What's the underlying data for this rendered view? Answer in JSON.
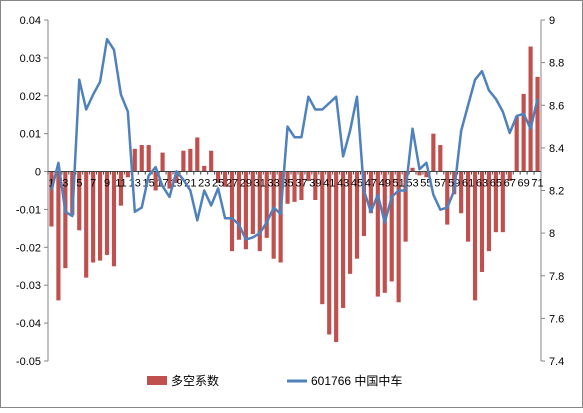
{
  "chart_data": {
    "type": "bar+line",
    "title": "",
    "categories": [
      "1",
      "2",
      "3",
      "4",
      "5",
      "6",
      "7",
      "8",
      "9",
      "10",
      "11",
      "12",
      "13",
      "14",
      "15",
      "16",
      "17",
      "18",
      "19",
      "20",
      "21",
      "22",
      "23",
      "24",
      "25",
      "26",
      "27",
      "28",
      "29",
      "30",
      "31",
      "32",
      "33",
      "34",
      "35",
      "36",
      "37",
      "38",
      "39",
      "40",
      "41",
      "42",
      "43",
      "44",
      "45",
      "46",
      "47",
      "48",
      "49",
      "50",
      "51",
      "52",
      "53",
      "54",
      "55",
      "56",
      "57",
      "58",
      "59",
      "60",
      "61",
      "62",
      "63",
      "64",
      "65",
      "66",
      "67",
      "68",
      "69",
      "70",
      "71"
    ],
    "x_tick_labels": [
      "1",
      "3",
      "5",
      "7",
      "9",
      "11",
      "13",
      "15",
      "17",
      "19",
      "21",
      "23",
      "25",
      "27",
      "29",
      "31",
      "33",
      "35",
      "37",
      "39",
      "41",
      "43",
      "45",
      "47",
      "49",
      "51",
      "53",
      "55",
      "57",
      "59",
      "61",
      "63",
      "65",
      "67",
      "69",
      "71"
    ],
    "series": [
      {
        "name": "多空系数",
        "type": "bar",
        "axis": "left",
        "color": "#C0504D",
        "values": [
          -0.0145,
          -0.034,
          -0.0255,
          -0.0115,
          -0.0155,
          -0.028,
          -0.024,
          -0.0235,
          -0.022,
          -0.025,
          -0.009,
          -0.0015,
          0.006,
          0.007,
          0.007,
          -0.005,
          0.005,
          -0.0045,
          -0.003,
          0.0055,
          0.006,
          0.009,
          0.0015,
          0.0055,
          -0.003,
          -0.004,
          -0.021,
          -0.018,
          -0.0205,
          -0.0165,
          -0.021,
          -0.0175,
          -0.023,
          -0.024,
          -0.0085,
          -0.008,
          -0.0075,
          -0.0025,
          -0.0075,
          -0.035,
          -0.043,
          -0.045,
          -0.036,
          -0.027,
          -0.023,
          -0.017,
          -0.011,
          -0.033,
          -0.032,
          -0.029,
          -0.0345,
          -0.0185,
          0.001,
          -0.001,
          -0.0015,
          0.01,
          0.007,
          -0.014,
          -0.006,
          -0.011,
          -0.0185,
          -0.034,
          -0.0265,
          -0.021,
          -0.016,
          -0.016,
          -0.0025,
          0.0145,
          0.0205,
          0.033,
          0.025
        ]
      },
      {
        "name": "601766 中国中车",
        "type": "line",
        "axis": "right",
        "color": "#4F81BD",
        "values": [
          8.2,
          8.33,
          8.1,
          8.08,
          8.72,
          8.58,
          8.65,
          8.71,
          8.91,
          8.86,
          8.65,
          8.57,
          8.1,
          8.12,
          8.27,
          8.31,
          8.22,
          8.17,
          8.29,
          8.25,
          8.2,
          8.06,
          8.2,
          8.13,
          8.21,
          8.07,
          8.07,
          8.04,
          7.97,
          7.98,
          8.0,
          8.05,
          8.12,
          8.09,
          8.5,
          8.45,
          8.45,
          8.64,
          8.58,
          8.58,
          8.61,
          8.64,
          8.36,
          8.48,
          8.64,
          8.2,
          8.1,
          8.18,
          8.05,
          8.17,
          8.2,
          8.2,
          8.49,
          8.3,
          8.33,
          8.18,
          8.11,
          8.12,
          8.2,
          8.48,
          8.6,
          8.72,
          8.76,
          8.67,
          8.63,
          8.57,
          8.47,
          8.55,
          8.56,
          8.49,
          8.63
        ]
      }
    ],
    "left_axis": {
      "min": -0.05,
      "max": 0.04,
      "step": 0.01,
      "tick_labels": [
        "0.04",
        "0.03",
        "0.02",
        "0.01",
        "0",
        "-0.01",
        "-0.02",
        "-0.03",
        "-0.04",
        "-0.05"
      ]
    },
    "right_axis": {
      "min": 7.4,
      "max": 9.0,
      "step": 0.2,
      "tick_labels": [
        "9",
        "8.8",
        "8.6",
        "8.4",
        "8.2",
        "8",
        "7.8",
        "7.6",
        "7.4"
      ]
    },
    "grid": false,
    "legend_position": "bottom"
  }
}
